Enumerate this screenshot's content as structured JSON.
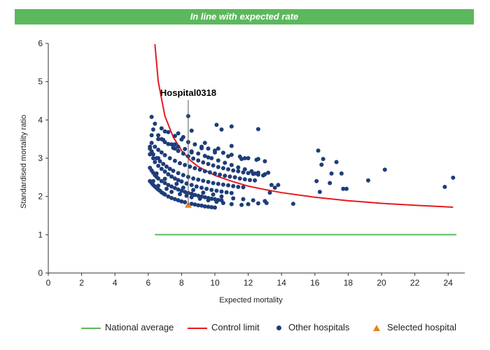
{
  "banner": {
    "text": "In line with expected rate",
    "color": "#5cb85c"
  },
  "chart_data": {
    "type": "scatter",
    "xlabel": "Expected mortality",
    "ylabel": "Standardised mortality ratio",
    "xlim": [
      0,
      25
    ],
    "ylim": [
      0,
      6
    ],
    "xticks": [
      0,
      2,
      4,
      6,
      8,
      10,
      12,
      14,
      16,
      18,
      20,
      22,
      24
    ],
    "yticks": [
      0,
      1,
      2,
      3,
      4,
      5,
      6
    ],
    "grid": false,
    "legend_position": "bottom",
    "annotation": {
      "label": "Hospital0318",
      "x": 8.4,
      "y": 1.78
    },
    "series": [
      {
        "name": "National average",
        "kind": "line",
        "color": "#5cb85c",
        "x": [
          6.4,
          24.5
        ],
        "y": [
          1.0,
          1.0
        ]
      },
      {
        "name": "Control limit",
        "kind": "line",
        "color": "#e8191b",
        "x": [
          6.4,
          6.6,
          7.0,
          7.5,
          8.0,
          8.5,
          9.0,
          10.0,
          11.0,
          12.0,
          13.0,
          14.0,
          16.0,
          18.0,
          20.0,
          22.0,
          24.3
        ],
        "y": [
          5.98,
          5.0,
          4.1,
          3.55,
          3.2,
          2.95,
          2.78,
          2.55,
          2.4,
          2.27,
          2.18,
          2.1,
          1.98,
          1.89,
          1.82,
          1.77,
          1.72
        ]
      },
      {
        "name": "Other hospitals",
        "kind": "scatter",
        "color": "#1e3d7a",
        "x": [
          6.1,
          6.2,
          6.3,
          6.4,
          6.5,
          6.6,
          6.7,
          6.8,
          6.9,
          7.0,
          7.2,
          7.4,
          7.6,
          7.8,
          8.0,
          8.2,
          8.6,
          8.8,
          9.0,
          9.2,
          9.4,
          9.6,
          9.8,
          10.0,
          6.1,
          6.2,
          6.3,
          6.4,
          6.5,
          6.6,
          6.8,
          7.0,
          7.2,
          7.4,
          7.6,
          7.8,
          8.0,
          8.2,
          8.4,
          8.6,
          8.8,
          9.0,
          9.2,
          9.4,
          9.6,
          9.8,
          10.0,
          10.2,
          10.4,
          6.1,
          6.2,
          6.3,
          6.4,
          6.6,
          6.8,
          7.0,
          7.2,
          7.4,
          7.6,
          7.8,
          8.0,
          8.3,
          8.6,
          8.9,
          9.2,
          9.5,
          9.8,
          10.1,
          10.4,
          10.7,
          11.0,
          6.1,
          6.2,
          6.3,
          6.5,
          6.7,
          6.9,
          7.1,
          7.3,
          7.5,
          7.8,
          8.1,
          8.4,
          8.7,
          9.0,
          9.3,
          9.6,
          9.9,
          10.2,
          10.5,
          10.8,
          11.1,
          11.4,
          11.7,
          6.2,
          6.4,
          6.6,
          6.8,
          7.0,
          7.3,
          7.6,
          7.9,
          8.2,
          8.5,
          8.8,
          9.1,
          9.4,
          9.7,
          10.0,
          10.3,
          10.6,
          10.9,
          11.2,
          11.5,
          11.8,
          12.1,
          12.4,
          6.3,
          6.6,
          6.9,
          7.2,
          7.5,
          7.8,
          8.1,
          8.4,
          8.7,
          9.0,
          9.3,
          9.6,
          9.9,
          10.2,
          10.5,
          10.8,
          11.1,
          11.4,
          11.7,
          12.0,
          12.3,
          12.6,
          12.9,
          6.2,
          6.6,
          7.0,
          7.4,
          7.8,
          8.2,
          8.6,
          9.0,
          9.4,
          9.8,
          10.2,
          10.6,
          11.0,
          11.4,
          11.8,
          12.2,
          12.6,
          13.0,
          6.4,
          6.8,
          7.2,
          7.6,
          8.0,
          8.4,
          8.8,
          9.2,
          9.6,
          10.0,
          10.5,
          11.0,
          11.5,
          12.0,
          12.5,
          13.0,
          6.2,
          7.0,
          7.8,
          8.6,
          9.4,
          10.2,
          11.0,
          11.8,
          12.6,
          13.4,
          6.8,
          7.6,
          8.4,
          9.2,
          10.0,
          10.8,
          11.6,
          12.4,
          13.2,
          6.3,
          6.6,
          7.1,
          7.4,
          7.9,
          8.3,
          8.6,
          9.1,
          9.6,
          10.1,
          10.5,
          11.0,
          11.6,
          12.0,
          12.6,
          13.1,
          13.6,
          6.5,
          7.0,
          7.7,
          8.1,
          8.7,
          9.3,
          9.9,
          10.4,
          11.1,
          11.7,
          12.3,
          13.0,
          13.3,
          13.8,
          10.1,
          10.4,
          11.0,
          12.6,
          8.1,
          6.1,
          6.6,
          7.6,
          8.6,
          9.6,
          14.7,
          16.1,
          16.2,
          16.3,
          16.4,
          16.5,
          16.9,
          17.0,
          17.3,
          17.6,
          17.7,
          17.9,
          19.2,
          20.2,
          23.8,
          24.3
        ],
        "y": [
          2.4,
          2.35,
          2.3,
          2.26,
          2.22,
          2.18,
          2.15,
          2.11,
          2.08,
          2.05,
          2.0,
          1.96,
          1.93,
          1.9,
          1.87,
          1.85,
          1.81,
          1.79,
          1.77,
          1.76,
          1.74,
          1.73,
          1.72,
          1.71,
          2.75,
          2.68,
          2.62,
          2.56,
          2.51,
          2.47,
          2.4,
          2.35,
          2.3,
          2.26,
          2.22,
          2.18,
          2.15,
          2.12,
          2.09,
          2.07,
          2.04,
          2.02,
          2.0,
          1.98,
          1.96,
          1.94,
          1.93,
          1.91,
          1.9,
          3.3,
          3.15,
          3.0,
          2.9,
          2.8,
          2.72,
          2.65,
          2.58,
          2.52,
          2.47,
          2.43,
          2.39,
          2.34,
          2.3,
          2.26,
          2.23,
          2.2,
          2.17,
          2.15,
          2.13,
          2.11,
          2.09,
          3.25,
          3.18,
          3.1,
          3.0,
          2.92,
          2.85,
          2.78,
          2.72,
          2.67,
          2.61,
          2.56,
          2.51,
          2.47,
          2.44,
          2.41,
          2.38,
          2.35,
          2.33,
          2.31,
          2.29,
          2.27,
          2.25,
          2.24,
          3.4,
          3.3,
          3.22,
          3.15,
          3.08,
          3.0,
          2.93,
          2.87,
          2.82,
          2.78,
          2.74,
          2.7,
          2.66,
          2.63,
          2.6,
          2.57,
          2.54,
          2.52,
          2.5,
          2.47,
          2.45,
          2.43,
          2.42,
          3.75,
          3.6,
          3.48,
          3.37,
          3.27,
          3.19,
          3.12,
          3.05,
          2.99,
          2.94,
          2.89,
          2.85,
          2.81,
          2.77,
          2.74,
          2.71,
          2.68,
          2.66,
          2.63,
          2.61,
          2.59,
          2.57,
          2.55,
          3.6,
          3.5,
          3.42,
          3.36,
          3.3,
          3.24,
          3.18,
          3.12,
          3.06,
          3.0,
          2.94,
          2.88,
          2.82,
          2.76,
          2.71,
          2.66,
          2.62,
          2.58,
          3.9,
          3.78,
          3.68,
          3.58,
          3.49,
          3.42,
          3.36,
          3.3,
          3.25,
          3.2,
          3.14,
          3.09,
          3.04,
          3.0,
          2.96,
          2.92,
          4.08,
          3.7,
          3.65,
          3.72,
          3.4,
          3.25,
          3.32,
          3.0,
          2.98,
          2.3,
          3.5,
          3.36,
          4.1,
          3.26,
          3.15,
          3.05,
          2.98,
          2.6,
          2.62,
          2.4,
          2.28,
          2.2,
          2.12,
          2.06,
          2.02,
          1.98,
          1.94,
          1.9,
          1.86,
          1.83,
          1.8,
          1.78,
          1.8,
          1.82,
          1.83,
          2.23,
          2.6,
          2.46,
          2.33,
          2.23,
          2.17,
          2.1,
          2.05,
          2.0,
          1.95,
          1.93,
          1.9,
          1.88,
          2.1,
          2.3,
          3.87,
          3.75,
          3.83,
          3.76,
          3.55,
          3.1,
          3.0,
          3.25,
          3.15,
          3.02,
          1.81,
          2.4,
          3.2,
          2.12,
          2.83,
          2.98,
          2.35,
          2.6,
          2.9,
          2.6,
          2.2,
          2.2,
          2.42,
          2.7,
          2.25,
          2.49
        ]
      },
      {
        "name": "Selected hospital",
        "kind": "triangle",
        "color": "#e8821e",
        "x": [
          8.4
        ],
        "y": [
          1.78
        ]
      }
    ]
  }
}
